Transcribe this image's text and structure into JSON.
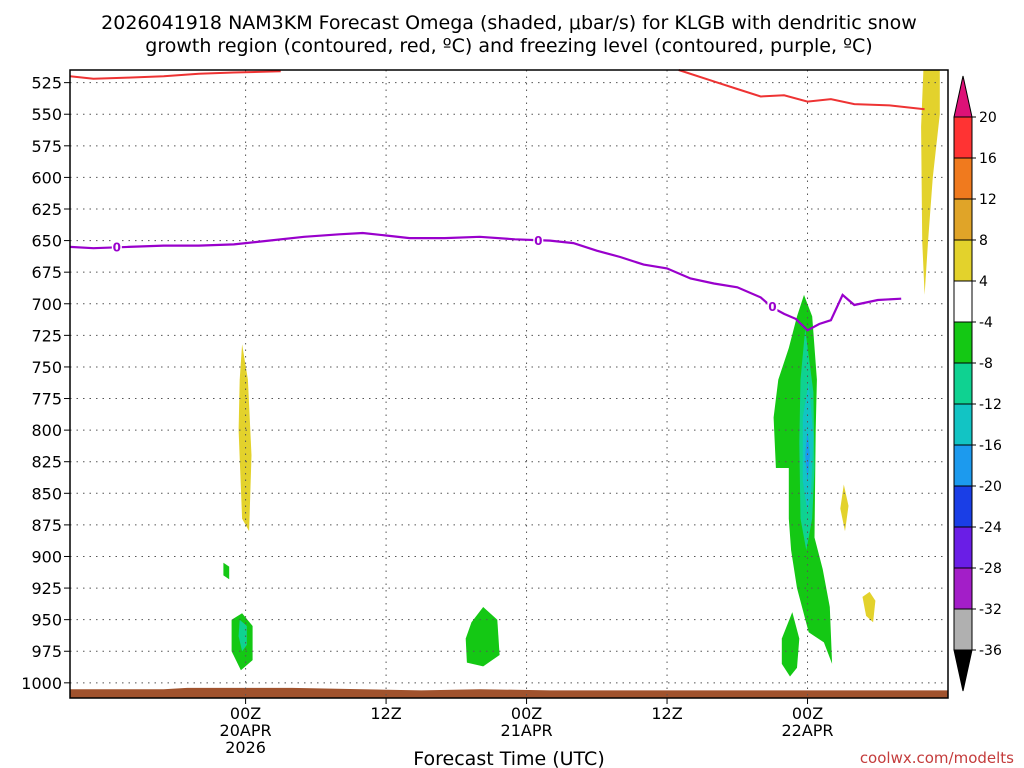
{
  "chart_data": {
    "type": "contour",
    "title_line1": "2026041918 NAM3KM Forecast Omega (shaded, μbar/s) for KLGB with dendritic snow",
    "title_line2": "growth region (contoured, red, ºC) and freezing level (contoured, purple, ºC)",
    "xlabel": "Forecast Time (UTC)",
    "credit": "coolwx.com/modelts",
    "x_range_hours": [
      -15,
      60
    ],
    "x_ticks": [
      {
        "hour": 0,
        "lines": [
          "00Z",
          "20APR",
          "2026"
        ]
      },
      {
        "hour": 12,
        "lines": [
          "12Z"
        ]
      },
      {
        "hour": 24,
        "lines": [
          "00Z",
          "21APR"
        ]
      },
      {
        "hour": 36,
        "lines": [
          "12Z"
        ]
      },
      {
        "hour": 48,
        "lines": [
          "00Z",
          "22APR"
        ]
      }
    ],
    "y_range_mb": [
      515,
      1012
    ],
    "y_ticks": [
      525,
      550,
      575,
      600,
      625,
      650,
      675,
      700,
      725,
      750,
      775,
      800,
      825,
      850,
      875,
      900,
      925,
      950,
      975,
      1000
    ],
    "grid": true,
    "colorbar": {
      "labels": [
        "20",
        "16",
        "12",
        "8",
        "4",
        "-4",
        "-8",
        "-12",
        "-16",
        "-20",
        "-24",
        "-28",
        "-32",
        "-36"
      ],
      "colors": [
        "#ff3333",
        "#f07a1e",
        "#e0a428",
        "#e3d22c",
        "#ffffff",
        "#14c814",
        "#0fd291",
        "#12c4c4",
        "#1c9aee",
        "#1a3ee6",
        "#6a1ee6",
        "#a31ec8",
        "#b0b0b0"
      ],
      "top_color": "#dd1177",
      "bottom_color": "#000000"
    },
    "freezing_level": {
      "label": "0",
      "color": "#9900cc",
      "points": [
        [
          -15,
          655
        ],
        [
          -13,
          656
        ],
        [
          -10,
          655
        ],
        [
          -7,
          654
        ],
        [
          -4,
          654
        ],
        [
          -1,
          653
        ],
        [
          2,
          650
        ],
        [
          5,
          647
        ],
        [
          8,
          645
        ],
        [
          10,
          644
        ],
        [
          12,
          646
        ],
        [
          14,
          648
        ],
        [
          17,
          648
        ],
        [
          20,
          647
        ],
        [
          23,
          649
        ],
        [
          26,
          650
        ],
        [
          28,
          652
        ],
        [
          30,
          658
        ],
        [
          32,
          663
        ],
        [
          34,
          669
        ],
        [
          36,
          672
        ],
        [
          38,
          680
        ],
        [
          40,
          684
        ],
        [
          42,
          687
        ],
        [
          44,
          695
        ],
        [
          45,
          703
        ],
        [
          46,
          708
        ],
        [
          47,
          712
        ],
        [
          48,
          721
        ],
        [
          49,
          716
        ],
        [
          50,
          713
        ],
        [
          51,
          693
        ],
        [
          52,
          701
        ],
        [
          54,
          697
        ],
        [
          56,
          696
        ]
      ],
      "label_positions": [
        [
          -11,
          655
        ],
        [
          25,
          650
        ],
        [
          45,
          702
        ]
      ]
    },
    "dgz_contour": {
      "color": "#ee3333",
      "segments": [
        [
          [
            -15,
            520
          ],
          [
            -13,
            522
          ],
          [
            -10,
            521
          ],
          [
            -7,
            520
          ],
          [
            -4,
            518
          ],
          [
            -1,
            517
          ],
          [
            3,
            516
          ]
        ],
        [
          [
            37,
            515
          ],
          [
            40,
            524
          ],
          [
            42,
            530
          ],
          [
            44,
            536
          ],
          [
            46,
            535
          ],
          [
            48,
            540
          ],
          [
            50,
            538
          ],
          [
            52,
            542
          ],
          [
            55,
            543
          ],
          [
            58,
            546
          ]
        ]
      ]
    },
    "terrain": {
      "color": "#a0522d",
      "points": [
        [
          -15,
          1005
        ],
        [
          -7,
          1005
        ],
        [
          -5,
          1004
        ],
        [
          0,
          1004
        ],
        [
          4,
          1004
        ],
        [
          10,
          1005
        ],
        [
          15,
          1006
        ],
        [
          20,
          1005
        ],
        [
          26,
          1006
        ],
        [
          35,
          1006
        ],
        [
          45,
          1006
        ],
        [
          60,
          1006
        ]
      ]
    },
    "omega_regions": [
      {
        "value": 4,
        "color": "#e3d22c",
        "points": [
          [
            -0.3,
            732
          ],
          [
            0.2,
            760
          ],
          [
            0.5,
            820
          ],
          [
            0.3,
            880
          ],
          [
            -0.3,
            870
          ],
          [
            -0.6,
            800
          ],
          [
            -0.5,
            760
          ]
        ]
      },
      {
        "value": -4,
        "color": "#14c814",
        "points": [
          [
            -1.2,
            950
          ],
          [
            -0.3,
            945
          ],
          [
            0.6,
            955
          ],
          [
            0.6,
            982
          ],
          [
            -0.4,
            990
          ],
          [
            -1.2,
            975
          ]
        ]
      },
      {
        "value": -8,
        "color": "#0fd291",
        "points": [
          [
            -0.5,
            950
          ],
          [
            0.1,
            955
          ],
          [
            0.1,
            970
          ],
          [
            -0.3,
            975
          ],
          [
            -0.6,
            963
          ]
        ]
      },
      {
        "value": -4,
        "color": "#14c814",
        "points": [
          [
            -1.9,
            905
          ],
          [
            -1.4,
            908
          ],
          [
            -1.4,
            918
          ],
          [
            -1.9,
            915
          ]
        ]
      },
      {
        "value": -4,
        "color": "#14c814",
        "points": [
          [
            20.3,
            940
          ],
          [
            21.5,
            950
          ],
          [
            21.7,
            978
          ],
          [
            20.3,
            987
          ],
          [
            18.9,
            984
          ],
          [
            18.8,
            965
          ],
          [
            19.3,
            952
          ]
        ]
      },
      {
        "value": -4,
        "color": "#14c814",
        "points": [
          [
            47.7,
            693
          ],
          [
            48.4,
            710
          ],
          [
            48.8,
            760
          ],
          [
            48.7,
            800
          ],
          [
            48.6,
            885
          ],
          [
            49.3,
            910
          ],
          [
            49.9,
            940
          ],
          [
            50.1,
            985
          ],
          [
            49.4,
            968
          ],
          [
            48.1,
            960
          ],
          [
            47.1,
            925
          ],
          [
            46.6,
            895
          ],
          [
            46.4,
            870
          ],
          [
            46.4,
            830
          ],
          [
            45.3,
            830
          ],
          [
            45.1,
            790
          ],
          [
            45.5,
            760
          ],
          [
            46.4,
            735
          ],
          [
            47.1,
            710
          ]
        ]
      },
      {
        "value": -8,
        "color": "#0fd291",
        "points": [
          [
            47.8,
            720
          ],
          [
            48.5,
            770
          ],
          [
            48.6,
            830
          ],
          [
            48.4,
            870
          ],
          [
            47.9,
            895
          ],
          [
            47.4,
            870
          ],
          [
            47.3,
            810
          ],
          [
            47.4,
            760
          ]
        ]
      },
      {
        "value": -12,
        "color": "#12c4c4",
        "points": [
          [
            48.1,
            762
          ],
          [
            48.5,
            805
          ],
          [
            48.3,
            850
          ],
          [
            48.0,
            865
          ],
          [
            47.6,
            840
          ],
          [
            47.6,
            790
          ]
        ]
      },
      {
        "value": -16,
        "color": "#1c9aee",
        "points": [
          [
            48.0,
            800
          ],
          [
            48.2,
            820
          ],
          [
            48.0,
            840
          ],
          [
            47.8,
            820
          ]
        ]
      },
      {
        "value": -4,
        "color": "#14c814",
        "points": [
          [
            46.7,
            944
          ],
          [
            47.3,
            965
          ],
          [
            47.1,
            988
          ],
          [
            46.5,
            995
          ],
          [
            45.8,
            985
          ],
          [
            45.8,
            965
          ]
        ]
      },
      {
        "value": 4,
        "color": "#e3d22c",
        "points": [
          [
            51.1,
            843
          ],
          [
            51.5,
            860
          ],
          [
            51.2,
            880
          ],
          [
            50.8,
            862
          ]
        ]
      },
      {
        "value": 4,
        "color": "#e3d22c",
        "points": [
          [
            53.3,
            928
          ],
          [
            53.8,
            935
          ],
          [
            53.6,
            952
          ],
          [
            53.0,
            947
          ],
          [
            52.7,
            932
          ]
        ]
      },
      {
        "value": 4,
        "color": "#e3d22c",
        "points": [
          [
            57.9,
            515
          ],
          [
            59.3,
            515
          ],
          [
            59.3,
            550
          ],
          [
            58.7,
            600
          ],
          [
            58.3,
            650
          ],
          [
            58.0,
            693
          ],
          [
            57.8,
            650
          ],
          [
            57.7,
            560
          ]
        ]
      }
    ]
  }
}
